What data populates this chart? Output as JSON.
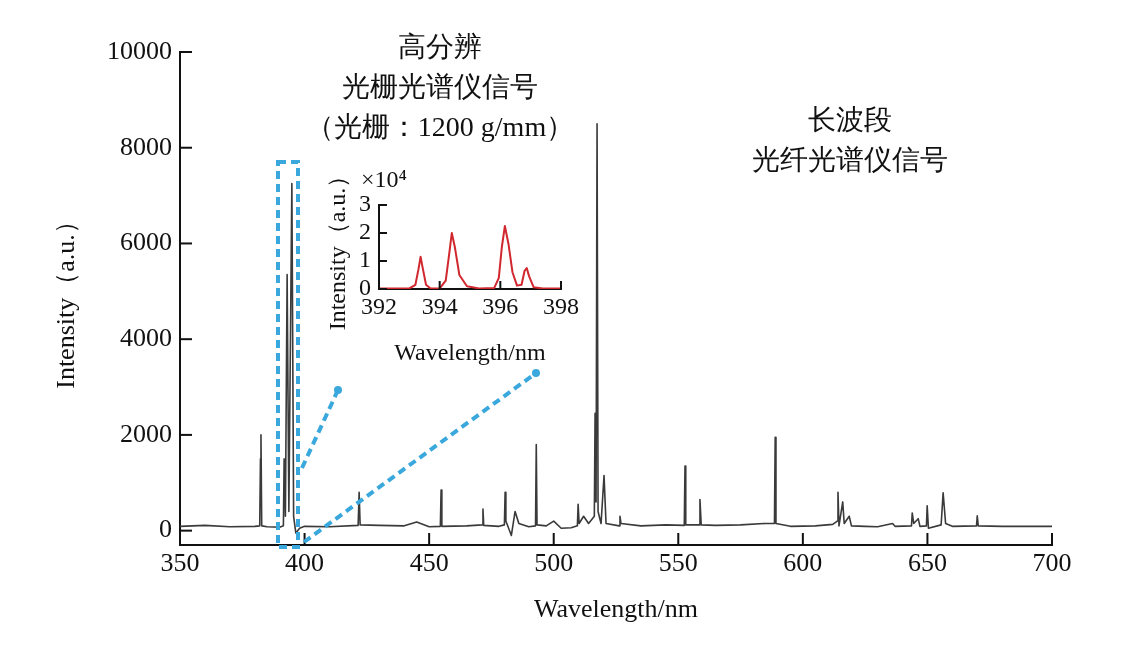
{
  "chart_data": [
    {
      "type": "line",
      "xlabel": "Wavelength/nm",
      "ylabel": "Intensity（a.u.）",
      "color": "#3a3a3a",
      "marker": "none",
      "annotations": [
        "高分辨",
        "光栅光谱仪信号",
        "（光栅：1200 g/mm）",
        "长波段",
        "光纤光谱仪信号"
      ],
      "xlim": [
        350,
        700
      ],
      "ylim": [
        -300,
        10000
      ],
      "xticks": [
        350,
        400,
        450,
        500,
        550,
        600,
        650,
        700
      ],
      "yticks": [
        0,
        2000,
        4000,
        6000,
        8000,
        10000
      ],
      "x": [
        350,
        360,
        370,
        380,
        382.0,
        382.3,
        382.5,
        382.8,
        385,
        390,
        391.5,
        391.8,
        392.3,
        393.0,
        393.7,
        394.9,
        395.6,
        396.5,
        398,
        400,
        410,
        421.5,
        421.9,
        422.3,
        430,
        440,
        445,
        450,
        454.5,
        454.8,
        455.1,
        465,
        471.3,
        471.6,
        471.9,
        478,
        480.2,
        480.5,
        480.8,
        483,
        484.5,
        486,
        490,
        492.7,
        493.0,
        493.3,
        497,
        500,
        503,
        507,
        509.5,
        509.8,
        510.2,
        512,
        514,
        516.3,
        516.6,
        517.0,
        517.4,
        517.8,
        519,
        520.2,
        521,
        526.3,
        526.6,
        527,
        535,
        545,
        552.4,
        552.7,
        553.0,
        558.4,
        558.7,
        559.2,
        565,
        575,
        585,
        588.6,
        588.9,
        589.2,
        595,
        605,
        612,
        613.8,
        614.1,
        614.5,
        616.0,
        616.6,
        618.6,
        619.5,
        625,
        630,
        636,
        637,
        643.6,
        643.9,
        644.5,
        646.3,
        647,
        649.6,
        649.9,
        650.4,
        655.5,
        656.3,
        657.3,
        660,
        669.7,
        670,
        670.4,
        680,
        690,
        700
      ],
      "values": [
        90,
        110,
        80,
        90,
        100,
        1500,
        2000,
        100,
        80,
        70,
        100,
        1500,
        300,
        5350,
        400,
        7250,
        300,
        -50,
        50,
        90,
        80,
        110,
        800,
        120,
        110,
        100,
        180,
        80,
        90,
        850,
        90,
        100,
        120,
        450,
        110,
        90,
        120,
        800,
        200,
        -100,
        400,
        150,
        80,
        100,
        1800,
        120,
        100,
        200,
        50,
        60,
        100,
        550,
        150,
        300,
        150,
        300,
        2450,
        600,
        8500,
        400,
        150,
        1150,
        150,
        100,
        300,
        150,
        100,
        120,
        110,
        1350,
        120,
        120,
        650,
        120,
        110,
        120,
        150,
        150,
        1950,
        150,
        90,
        100,
        130,
        200,
        800,
        100,
        600,
        150,
        300,
        100,
        90,
        80,
        150,
        90,
        100,
        370,
        150,
        250,
        90,
        100,
        520,
        50,
        120,
        790,
        150,
        90,
        100,
        310,
        100,
        90,
        90,
        90
      ]
    },
    {
      "type": "line",
      "xlabel": "Wavelength/nm",
      "ylabel": "Intensity（a.u.）",
      "color": "#d0282e",
      "marker": "none",
      "annotations": [
        "×10⁴"
      ],
      "xlim": [
        392,
        398
      ],
      "ylim": [
        0,
        3
      ],
      "xticks": [
        392,
        394,
        396,
        398
      ],
      "yticks": [
        0,
        1,
        2,
        3
      ],
      "x": [
        392,
        393.0,
        393.2,
        393.3,
        393.37,
        393.45,
        393.55,
        393.7,
        394.0,
        394.2,
        394.32,
        394.4,
        394.5,
        394.65,
        394.9,
        395.3,
        395.8,
        395.95,
        396.05,
        396.15,
        396.27,
        396.4,
        396.55,
        396.7,
        396.8,
        396.87,
        396.95,
        397.1,
        397.4,
        398
      ],
      "values": [
        0.02,
        0.02,
        0.15,
        0.7,
        1.15,
        0.7,
        0.15,
        0.02,
        0.02,
        0.3,
        1.3,
        2.0,
        1.5,
        0.5,
        0.1,
        0.02,
        0.04,
        0.4,
        1.5,
        2.25,
        1.6,
        0.6,
        0.12,
        0.15,
        0.65,
        0.75,
        0.45,
        0.06,
        0.02,
        0.02
      ]
    }
  ]
}
